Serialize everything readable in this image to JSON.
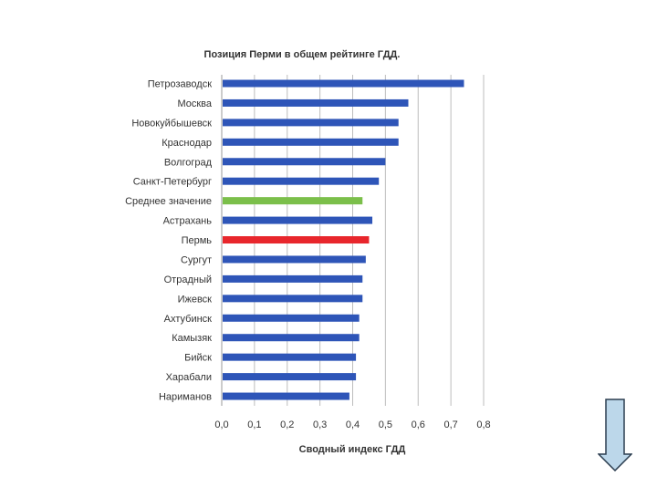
{
  "chart_data": {
    "type": "bar",
    "orientation": "horizontal",
    "title": "Позиция Перми в общем рейтинге ГДД.",
    "xlabel": "Сводный индекс ГДД",
    "ylabel": "",
    "xlim": [
      0,
      0.8
    ],
    "ticks": [
      "0,0",
      "0,1",
      "0,2",
      "0,3",
      "0,4",
      "0,5",
      "0,6",
      "0,7",
      "0,8"
    ],
    "grid": true,
    "categories": [
      "Петрозаводск",
      "Москва",
      "Новокуйбышевск",
      "Краснодар",
      "Волгоград",
      "Санкт-Петербург",
      "Среднее значение",
      "Астрахань",
      "Пермь",
      "Сургут",
      "Отрадный",
      "Ижевск",
      "Ахтубинск",
      "Камызяк",
      "Бийск",
      "Харабали",
      "Нариманов"
    ],
    "values": [
      0.74,
      0.57,
      0.54,
      0.54,
      0.5,
      0.48,
      0.43,
      0.46,
      0.45,
      0.44,
      0.43,
      0.43,
      0.42,
      0.42,
      0.41,
      0.41,
      0.39
    ],
    "bar_colors": [
      "#2e55b8",
      "#2e55b8",
      "#2e55b8",
      "#2e55b8",
      "#2e55b8",
      "#2e55b8",
      "#7bbf4a",
      "#2e55b8",
      "#e8262c",
      "#2e55b8",
      "#2e55b8",
      "#2e55b8",
      "#2e55b8",
      "#2e55b8",
      "#2e55b8",
      "#2e55b8",
      "#2e55b8"
    ]
  },
  "colors": {
    "default_bar": "#2e55b8",
    "average_bar": "#7bbf4a",
    "highlight_bar": "#e8262c",
    "arrow_fill": "#bcd7ea",
    "arrow_stroke": "#2c3e50"
  },
  "controls": {
    "arrow_icon": "down-arrow-icon"
  }
}
